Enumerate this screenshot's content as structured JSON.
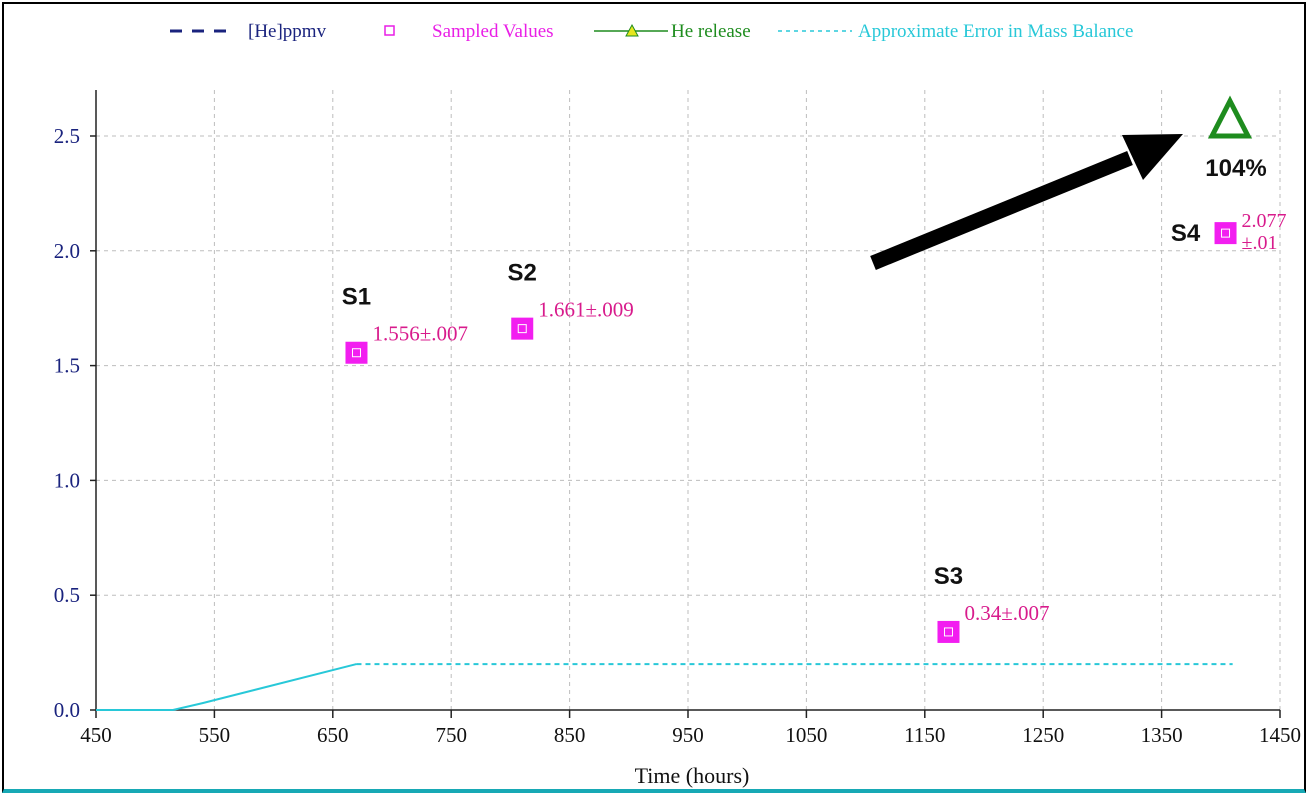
{
  "chart_data": {
    "type": "scatter",
    "xlabel": "Time (hours)",
    "ylabel": "",
    "xlim": [
      450,
      1450
    ],
    "ylim": [
      0,
      2.6
    ],
    "x_ticks": [
      450,
      550,
      650,
      750,
      850,
      950,
      1050,
      1150,
      1250,
      1350,
      1450
    ],
    "y_ticks": [
      0.0,
      0.5,
      1.0,
      1.5,
      2.0,
      2.5
    ],
    "x_tick_labels": [
      "450",
      "550",
      "650",
      "750",
      "850",
      "950",
      "1050",
      "1150",
      "1250",
      "1350",
      "1450"
    ],
    "y_tick_labels": [
      "0.0",
      "0.5",
      "1.0",
      "1.5",
      "2.0",
      "2.5"
    ],
    "grid": true,
    "legend": [
      {
        "name": "[He]ppmv",
        "color": "#1a237e",
        "style": "dashed"
      },
      {
        "name": "Sampled Values",
        "color": "#e91ee6",
        "style": "square-marker"
      },
      {
        "name": "He release",
        "color": "#1e8c1e",
        "style": "line-triangle"
      },
      {
        "name": "Approximate Error in Mass Balance",
        "color": "#28c8d8",
        "style": "dotted"
      }
    ],
    "legend_position": "top",
    "samples": [
      {
        "id": "S1",
        "x": 670,
        "y": 1.556,
        "label": "1.556±.007"
      },
      {
        "id": "S2",
        "x": 810,
        "y": 1.661,
        "label": "1.661±.009"
      },
      {
        "id": "S3",
        "x": 1170,
        "y": 0.34,
        "label": "0.34±.007"
      },
      {
        "id": "S4",
        "x": 1404,
        "y": 2.077,
        "label_line1": "2.077",
        "label_line2": "±.01"
      }
    ],
    "error_mass_balance": {
      "x": [
        450,
        515,
        540,
        670,
        1410
      ],
      "y": [
        0.0,
        0.0,
        0.03,
        0.2,
        0.2
      ]
    },
    "annotations": {
      "he_release_percent": "104%"
    }
  },
  "colors": {
    "sample_marker": "#f21ef0",
    "sample_label": "#d81b8c",
    "error_line": "#28c8d8",
    "he_release": "#1e8c1e",
    "axis_tick_labels": "#1a237e",
    "arrow": "#000000"
  }
}
